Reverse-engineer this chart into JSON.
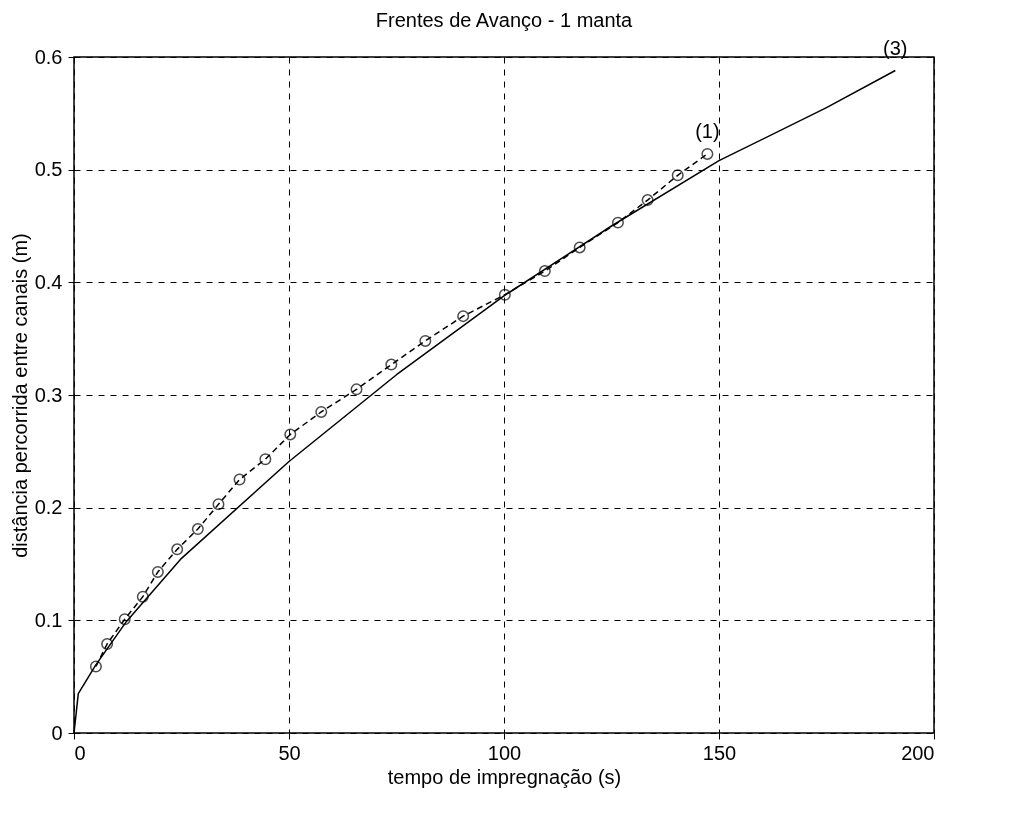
{
  "chart_data": {
    "type": "line",
    "title": "Frentes de Avanço - 1 manta",
    "xlabel": "tempo de impregnação (s)",
    "ylabel": "distância percorrida entre canais (m)",
    "xlim": [
      0,
      200
    ],
    "ylim": [
      0,
      0.6
    ],
    "xticks": [
      0,
      50,
      100,
      150,
      200
    ],
    "yticks": [
      0,
      0.1,
      0.2,
      0.3,
      0.4,
      0.5,
      0.6
    ],
    "grid": true,
    "series": [
      {
        "name": "(1)",
        "color": "#000000",
        "marker": "circle",
        "line_style": "dashed",
        "x": [
          5.1,
          7.7,
          11.8,
          16,
          19.5,
          24,
          28.8,
          33.6,
          38.5,
          44.5,
          50.3,
          57.5,
          65.7,
          73.8,
          81.7,
          90.5,
          100.2,
          109.5,
          117.6,
          126.5,
          133.4,
          140.4,
          147.3
        ],
        "values": [
          0.059,
          0.079,
          0.101,
          0.121,
          0.143,
          0.163,
          0.181,
          0.203,
          0.225,
          0.243,
          0.265,
          0.285,
          0.305,
          0.327,
          0.348,
          0.37,
          0.389,
          0.41,
          0.431,
          0.453,
          0.473,
          0.495,
          0.514
        ]
      },
      {
        "name": "(3)",
        "color": "#000000",
        "marker": "none",
        "line_style": "solid",
        "x": [
          0,
          1,
          5,
          12,
          25,
          50,
          75,
          100,
          125,
          150,
          175,
          191
        ],
        "values": [
          0,
          0.035,
          0.06,
          0.098,
          0.155,
          0.241,
          0.318,
          0.388,
          0.45,
          0.508,
          0.555,
          0.588
        ]
      }
    ]
  }
}
